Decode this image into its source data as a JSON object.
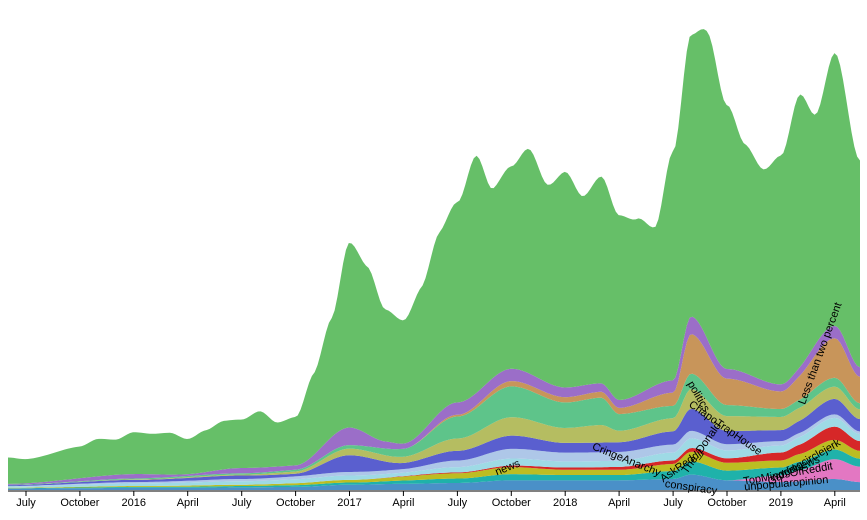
{
  "chart_data": {
    "type": "area",
    "stacked": true,
    "title": "",
    "xlabel": "",
    "ylabel": "",
    "y_axis_visible": false,
    "grid": false,
    "legend": "inline",
    "x_ticks": [
      {
        "label": "July",
        "t": 0
      },
      {
        "label": "October",
        "t": 3
      },
      {
        "label": "2016",
        "t": 6
      },
      {
        "label": "April",
        "t": 9
      },
      {
        "label": "July",
        "t": 12
      },
      {
        "label": "October",
        "t": 15
      },
      {
        "label": "2017",
        "t": 18
      },
      {
        "label": "April",
        "t": 21
      },
      {
        "label": "July",
        "t": 24
      },
      {
        "label": "October",
        "t": 27
      },
      {
        "label": "2018",
        "t": 30
      },
      {
        "label": "April",
        "t": 33
      },
      {
        "label": "July",
        "t": 36
      },
      {
        "label": "October",
        "t": 39
      },
      {
        "label": "2019",
        "t": 42
      },
      {
        "label": "April",
        "t": 45
      }
    ],
    "x_range": [
      -1,
      46.4
    ],
    "y_range": [
      0,
      1000
    ],
    "series": [
      {
        "name": "conspiracy",
        "color": "#4a90c8",
        "points": [
          [
            -1,
            3
          ],
          [
            3,
            4
          ],
          [
            6,
            5
          ],
          [
            9,
            5
          ],
          [
            12,
            6
          ],
          [
            15,
            7
          ],
          [
            18,
            12
          ],
          [
            21,
            14
          ],
          [
            24,
            16
          ],
          [
            27,
            22
          ],
          [
            30,
            22
          ],
          [
            33,
            22
          ],
          [
            36,
            25
          ],
          [
            37,
            35
          ],
          [
            39,
            22
          ],
          [
            42,
            18
          ],
          [
            45,
            25
          ],
          [
            46.4,
            18
          ]
        ]
      },
      {
        "name": "unpopularopinion",
        "color": "#e377c2",
        "points": [
          [
            -1,
            0
          ],
          [
            30,
            0
          ],
          [
            36,
            0
          ],
          [
            39,
            0
          ],
          [
            42,
            15
          ],
          [
            43,
            25
          ],
          [
            45,
            45
          ],
          [
            46.4,
            35
          ]
        ]
      },
      {
        "name": "TopMindsOfReddit",
        "color": "#1fb2aa",
        "points": [
          [
            -1,
            1
          ],
          [
            6,
            2
          ],
          [
            12,
            3
          ],
          [
            18,
            5
          ],
          [
            24,
            10
          ],
          [
            27,
            14
          ],
          [
            30,
            12
          ],
          [
            33,
            12
          ],
          [
            36,
            18
          ],
          [
            37,
            30
          ],
          [
            39,
            22
          ],
          [
            42,
            18
          ],
          [
            45,
            22
          ],
          [
            46.4,
            18
          ]
        ]
      },
      {
        "name": "worldnews",
        "color": "#bcbd22",
        "points": [
          [
            -1,
            1
          ],
          [
            6,
            2
          ],
          [
            12,
            3
          ],
          [
            18,
            6
          ],
          [
            24,
            12
          ],
          [
            27,
            16
          ],
          [
            30,
            12
          ],
          [
            33,
            12
          ],
          [
            36,
            16
          ],
          [
            37,
            22
          ],
          [
            39,
            18
          ],
          [
            42,
            16
          ],
          [
            45,
            22
          ],
          [
            46.4,
            18
          ]
        ]
      },
      {
        "name": "Gamingcirclejerk",
        "color": "#d62728",
        "points": [
          [
            -1,
            0
          ],
          [
            18,
            0
          ],
          [
            24,
            2
          ],
          [
            30,
            5
          ],
          [
            36,
            8
          ],
          [
            39,
            10
          ],
          [
            42,
            18
          ],
          [
            45,
            30
          ],
          [
            46.4,
            22
          ]
        ]
      },
      {
        "name": "AskReddit",
        "color": "#9edae5",
        "points": [
          [
            -1,
            3
          ],
          [
            6,
            6
          ],
          [
            12,
            8
          ],
          [
            18,
            10
          ],
          [
            21,
            8
          ],
          [
            24,
            12
          ],
          [
            27,
            16
          ],
          [
            30,
            14
          ],
          [
            33,
            14
          ],
          [
            36,
            18
          ],
          [
            37,
            22
          ],
          [
            39,
            18
          ],
          [
            42,
            16
          ],
          [
            45,
            20
          ],
          [
            46.4,
            16
          ]
        ]
      },
      {
        "name": "CringeAnarchy",
        "color": "#aec7e8",
        "points": [
          [
            -1,
            1
          ],
          [
            6,
            3
          ],
          [
            12,
            5
          ],
          [
            18,
            8
          ],
          [
            21,
            8
          ],
          [
            24,
            15
          ],
          [
            27,
            22
          ],
          [
            30,
            20
          ],
          [
            33,
            20
          ],
          [
            36,
            18
          ],
          [
            39,
            14
          ],
          [
            42,
            10
          ],
          [
            45,
            8
          ],
          [
            46.4,
            6
          ]
        ]
      },
      {
        "name": "news",
        "color": "#5a5fcf",
        "points": [
          [
            -1,
            2
          ],
          [
            6,
            5
          ],
          [
            12,
            8
          ],
          [
            15,
            6
          ],
          [
            18,
            38
          ],
          [
            21,
            14
          ],
          [
            24,
            22
          ],
          [
            27,
            30
          ],
          [
            30,
            22
          ],
          [
            33,
            22
          ],
          [
            36,
            30
          ],
          [
            37,
            50
          ],
          [
            39,
            30
          ],
          [
            42,
            25
          ],
          [
            45,
            35
          ],
          [
            46.4,
            28
          ]
        ]
      },
      {
        "name": "The_Donald",
        "color": "#b5bd61",
        "points": [
          [
            -1,
            0
          ],
          [
            12,
            2
          ],
          [
            15,
            5
          ],
          [
            18,
            15
          ],
          [
            21,
            14
          ],
          [
            24,
            28
          ],
          [
            27,
            42
          ],
          [
            30,
            34
          ],
          [
            32,
            40
          ],
          [
            33,
            26
          ],
          [
            36,
            30
          ],
          [
            37,
            45
          ],
          [
            39,
            34
          ],
          [
            42,
            30
          ],
          [
            45,
            28
          ],
          [
            46.4,
            22
          ]
        ]
      },
      {
        "name": "CringeAnarchy-2",
        "color": "#5ec48a",
        "points": [
          [
            -1,
            1
          ],
          [
            12,
            3
          ],
          [
            15,
            4
          ],
          [
            18,
            8
          ],
          [
            21,
            18
          ],
          [
            24,
            50
          ],
          [
            27,
            70
          ],
          [
            30,
            58
          ],
          [
            32,
            62
          ],
          [
            33,
            38
          ],
          [
            36,
            28
          ],
          [
            37,
            35
          ],
          [
            39,
            25
          ],
          [
            42,
            18
          ],
          [
            45,
            20
          ],
          [
            46.4,
            14
          ]
        ]
      },
      {
        "name": "ChapoTrapHouse",
        "color": "#c8955a",
        "points": [
          [
            -1,
            0
          ],
          [
            21,
            0
          ],
          [
            24,
            4
          ],
          [
            27,
            12
          ],
          [
            30,
            12
          ],
          [
            33,
            14
          ],
          [
            36,
            30
          ],
          [
            37,
            90
          ],
          [
            39,
            60
          ],
          [
            42,
            40
          ],
          [
            45,
            90
          ],
          [
            46.4,
            60
          ]
        ]
      },
      {
        "name": "politics",
        "color": "#9b6ec8",
        "points": [
          [
            -1,
            2
          ],
          [
            6,
            10
          ],
          [
            9,
            4
          ],
          [
            12,
            12
          ],
          [
            15,
            10
          ],
          [
            18,
            40
          ],
          [
            20,
            16
          ],
          [
            21,
            12
          ],
          [
            24,
            28
          ],
          [
            27,
            28
          ],
          [
            30,
            22
          ],
          [
            33,
            18
          ],
          [
            36,
            28
          ],
          [
            37,
            40
          ],
          [
            39,
            22
          ],
          [
            42,
            16
          ],
          [
            45,
            28
          ],
          [
            46.4,
            22
          ]
        ]
      },
      {
        "name": "Less than two percent",
        "color": "#66bf68",
        "points": [
          [
            -1,
            60
          ],
          [
            0,
            55
          ],
          [
            3,
            72
          ],
          [
            4,
            85
          ],
          [
            5,
            80
          ],
          [
            6,
            95
          ],
          [
            7,
            92
          ],
          [
            8,
            95
          ],
          [
            9,
            80
          ],
          [
            10,
            95
          ],
          [
            11,
            110
          ],
          [
            12,
            110
          ],
          [
            13,
            128
          ],
          [
            14,
            100
          ],
          [
            15,
            110
          ],
          [
            16,
            185
          ],
          [
            17,
            270
          ],
          [
            18,
            420
          ],
          [
            19,
            380
          ],
          [
            20,
            300
          ],
          [
            21,
            280
          ],
          [
            22,
            330
          ],
          [
            23,
            410
          ],
          [
            24,
            455
          ],
          [
            25,
            540
          ],
          [
            26,
            430
          ],
          [
            27,
            460
          ],
          [
            28,
            510
          ],
          [
            29,
            450
          ],
          [
            30,
            490
          ],
          [
            31,
            430
          ],
          [
            32,
            470
          ],
          [
            33,
            420
          ],
          [
            34,
            400
          ],
          [
            35,
            360
          ],
          [
            36,
            520
          ],
          [
            37,
            640
          ],
          [
            38,
            700
          ],
          [
            39,
            600
          ],
          [
            40,
            520
          ],
          [
            41,
            480
          ],
          [
            42,
            520
          ],
          [
            43,
            620
          ],
          [
            44,
            520
          ],
          [
            45,
            620
          ],
          [
            46.4,
            470
          ]
        ]
      }
    ],
    "labels": [
      {
        "text": "Less than two percent",
        "series": "Less than two percent",
        "t": 44.2,
        "y": 310,
        "angle": -70
      },
      {
        "text": "politics",
        "series": "politics",
        "t": 37.4,
        "y": 212,
        "angle": 60
      },
      {
        "text": "ChapoTrapHouse",
        "series": "ChapoTrapHouse",
        "t": 38.9,
        "y": 140,
        "angle": 35
      },
      {
        "text": "The_Donald",
        "series": "The_Donald",
        "t": 37.6,
        "y": 95,
        "angle": -55
      },
      {
        "text": "CringeAnarchy",
        "series": "CringeAnarchy-2",
        "t": 33.4,
        "y": 68,
        "angle": 22
      },
      {
        "text": "news",
        "series": "news",
        "t": 26.8,
        "y": 50,
        "angle": -22
      },
      {
        "text": "AskReddit",
        "series": "AskReddit",
        "t": 36.5,
        "y": 55,
        "angle": -35
      },
      {
        "text": "Gamingcirclejerk",
        "series": "Gamingcirclejerk",
        "t": 43.3,
        "y": 62,
        "angle": -30
      },
      {
        "text": "worldnews",
        "series": "worldnews",
        "t": 42.8,
        "y": 48,
        "angle": -22
      },
      {
        "text": "TopMindsOfReddit",
        "series": "TopMindsOfReddit",
        "t": 42.4,
        "y": 36,
        "angle": -10
      },
      {
        "text": "unpopularopinion",
        "series": "unpopularopinion",
        "t": 42.3,
        "y": 14,
        "angle": -5
      },
      {
        "text": "conspiracy",
        "series": "conspiracy",
        "t": 37.0,
        "y": 5,
        "angle": 8
      }
    ]
  }
}
